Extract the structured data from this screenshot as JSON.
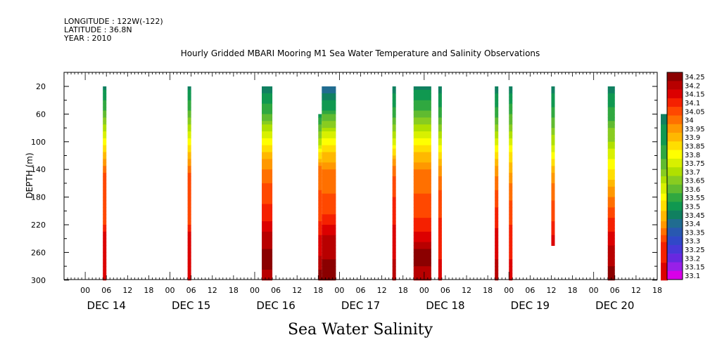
{
  "header": {
    "longitude": "LONGITUDE : 122W(-122)",
    "latitude": "LATITUDE : 36.8N",
    "year": "YEAR : 2010"
  },
  "chart_data": {
    "type": "heatmap",
    "title": "Hourly Gridded MBARI Mooring M1 Sea Water Temperature and Salinity Observations",
    "bottom_title": "Sea Water Salinity",
    "ylabel": "DEPTH (m)",
    "y_ticks": [
      "20",
      "60",
      "100",
      "140",
      "180",
      "220",
      "260",
      "300"
    ],
    "ylim": [
      300,
      5
    ],
    "x_hour_labels": [
      "00",
      "06",
      "12",
      "18",
      "00",
      "06",
      "12",
      "18",
      "00",
      "06",
      "12",
      "18",
      "00",
      "06",
      "12",
      "18",
      "00",
      "06",
      "12",
      "18",
      "00",
      "06",
      "12",
      "18",
      "00",
      "06",
      "12",
      "18"
    ],
    "day_labels": [
      "DEC 14",
      "DEC 15",
      "DEC 16",
      "DEC 17",
      "DEC 18",
      "DEC 19",
      "DEC 20"
    ],
    "colorbar": {
      "levels": [
        "34.25",
        "34.2",
        "34.15",
        "34.1",
        "34.05",
        "34",
        "33.95",
        "33.9",
        "33.85",
        "33.8",
        "33.75",
        "33.7",
        "33.65",
        "33.6",
        "33.55",
        "33.5",
        "33.45",
        "33.4",
        "33.35",
        "33.3",
        "33.25",
        "33.2",
        "33.15",
        "33.1"
      ],
      "colors": [
        "#8b0000",
        "#b80000",
        "#dc0000",
        "#f52000",
        "#ff4800",
        "#ff7000",
        "#ff9800",
        "#ffb800",
        "#ffde00",
        "#ffff00",
        "#d8f000",
        "#b0e000",
        "#88cc20",
        "#60bb30",
        "#30a840",
        "#109850",
        "#108060",
        "#206c90",
        "#2858b0",
        "#3048c8",
        "#4838d8",
        "#6828e0",
        "#9820e8",
        "#d800e8"
      ]
    },
    "x_units": "hours since DEC 14 00:00",
    "x_range": [
      -6,
      162
    ],
    "segments": [
      {
        "start": 5,
        "end": 6,
        "top": 20,
        "profile": [
          [
            20,
            33.45
          ],
          [
            50,
            33.55
          ],
          [
            90,
            33.75
          ],
          [
            120,
            33.9
          ],
          [
            150,
            34.05
          ],
          [
            210,
            34.05
          ],
          [
            240,
            34.15
          ],
          [
            300,
            34.15
          ]
        ]
      },
      {
        "start": 29,
        "end": 30,
        "top": 20,
        "profile": [
          [
            20,
            33.45
          ],
          [
            50,
            33.55
          ],
          [
            90,
            33.75
          ],
          [
            120,
            33.9
          ],
          [
            150,
            34.05
          ],
          [
            210,
            34.05
          ],
          [
            240,
            34.15
          ],
          [
            300,
            34.15
          ]
        ]
      },
      {
        "start": 50,
        "end": 53,
        "top": 20,
        "profile": [
          [
            20,
            33.45
          ],
          [
            55,
            33.55
          ],
          [
            90,
            33.75
          ],
          [
            130,
            33.95
          ],
          [
            170,
            34.05
          ],
          [
            210,
            34.1
          ],
          [
            240,
            34.2
          ],
          [
            270,
            34.25
          ],
          [
            300,
            34.2
          ]
        ]
      },
      {
        "start": 66,
        "end": 67,
        "top": 60,
        "profile": [
          [
            60,
            33.5
          ],
          [
            100,
            33.7
          ],
          [
            140,
            34.0
          ],
          [
            200,
            34.05
          ],
          [
            250,
            34.15
          ],
          [
            300,
            34.25
          ]
        ]
      },
      {
        "start": 67,
        "end": 71,
        "top": 20,
        "profile": [
          [
            20,
            33.4
          ],
          [
            50,
            33.5
          ],
          [
            90,
            33.75
          ],
          [
            120,
            33.9
          ],
          [
            150,
            34.0
          ],
          [
            200,
            34.05
          ],
          [
            240,
            34.2
          ],
          [
            300,
            34.25
          ]
        ]
      },
      {
        "start": 87,
        "end": 88,
        "top": 20,
        "profile": [
          [
            20,
            33.45
          ],
          [
            60,
            33.55
          ],
          [
            100,
            33.75
          ],
          [
            130,
            33.95
          ],
          [
            160,
            34.05
          ],
          [
            240,
            34.15
          ],
          [
            300,
            34.2
          ]
        ]
      },
      {
        "start": 93,
        "end": 98,
        "top": 20,
        "profile": [
          [
            20,
            33.45
          ],
          [
            50,
            33.55
          ],
          [
            90,
            33.75
          ],
          [
            120,
            33.9
          ],
          [
            150,
            34.0
          ],
          [
            200,
            34.05
          ],
          [
            240,
            34.15
          ],
          [
            260,
            34.25
          ],
          [
            300,
            34.2
          ]
        ]
      },
      {
        "start": 100,
        "end": 101,
        "top": 20,
        "profile": [
          [
            20,
            33.45
          ],
          [
            60,
            33.55
          ],
          [
            100,
            33.75
          ],
          [
            140,
            33.95
          ],
          [
            180,
            34.05
          ],
          [
            240,
            34.1
          ],
          [
            300,
            34.15
          ]
        ]
      },
      {
        "start": 116,
        "end": 117,
        "top": 20,
        "profile": [
          [
            20,
            33.45
          ],
          [
            60,
            33.55
          ],
          [
            100,
            33.75
          ],
          [
            140,
            33.95
          ],
          [
            180,
            34.05
          ],
          [
            240,
            34.15
          ],
          [
            300,
            34.2
          ]
        ]
      },
      {
        "start": 120,
        "end": 121,
        "top": 20,
        "profile": [
          [
            20,
            33.45
          ],
          [
            70,
            33.6
          ],
          [
            110,
            33.8
          ],
          [
            150,
            33.95
          ],
          [
            200,
            34.05
          ],
          [
            240,
            34.1
          ],
          [
            300,
            34.15
          ]
        ]
      },
      {
        "start": 132,
        "end": 133,
        "top": 20,
        "bottom": 250,
        "profile": [
          [
            20,
            33.45
          ],
          [
            60,
            33.55
          ],
          [
            110,
            33.75
          ],
          [
            150,
            33.95
          ],
          [
            200,
            34.05
          ],
          [
            250,
            34.15
          ]
        ]
      },
      {
        "start": 148,
        "end": 150,
        "top": 20,
        "profile": [
          [
            20,
            33.45
          ],
          [
            60,
            33.55
          ],
          [
            120,
            33.75
          ],
          [
            160,
            33.9
          ],
          [
            200,
            34.05
          ],
          [
            240,
            34.15
          ],
          [
            260,
            34.2
          ],
          [
            300,
            34.25
          ]
        ]
      },
      {
        "start": 163,
        "end": 165,
        "top": 60,
        "profile": [
          [
            60,
            33.45
          ],
          [
            120,
            33.55
          ],
          [
            180,
            33.8
          ],
          [
            220,
            33.95
          ],
          [
            250,
            34.1
          ],
          [
            300,
            34.15
          ]
        ]
      }
    ]
  }
}
